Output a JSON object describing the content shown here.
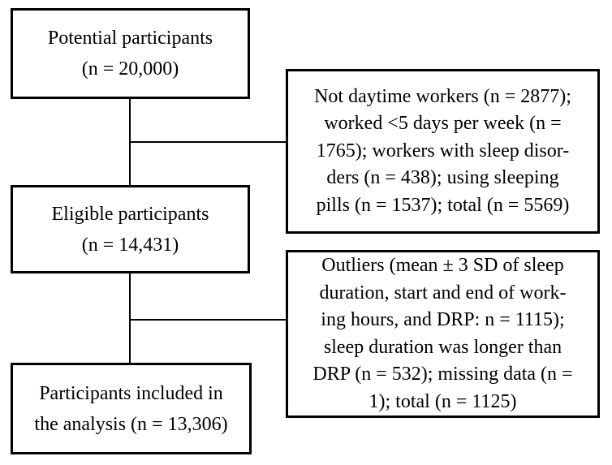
{
  "diagram": {
    "type": "participant-flow-chart",
    "background_color": "#ffffff",
    "line_color": "#000000",
    "boxes": {
      "potential": {
        "text": "Potential participants\n(n = 20,000)"
      },
      "eligible": {
        "text": "Eligible participants\n(n = 14,431)"
      },
      "included": {
        "text": "Participants included in\nthe analysis (n = 13,306)"
      },
      "exclusion1": {
        "text": "Not daytime workers (n = 2877);\nworked <5 days per week (n =\n1765); workers with sleep disor-\nders (n = 438); using sleeping\npills (n = 1537); total (n = 5569)"
      },
      "exclusion2": {
        "text": "Outliers (mean ± 3 SD of sleep\nduration, start and end of work-\ning hours, and DRP: n = 1115);\nsleep duration was longer than\nDRP (n = 532); missing data (n =\n1); total (n = 1125)"
      }
    }
  }
}
